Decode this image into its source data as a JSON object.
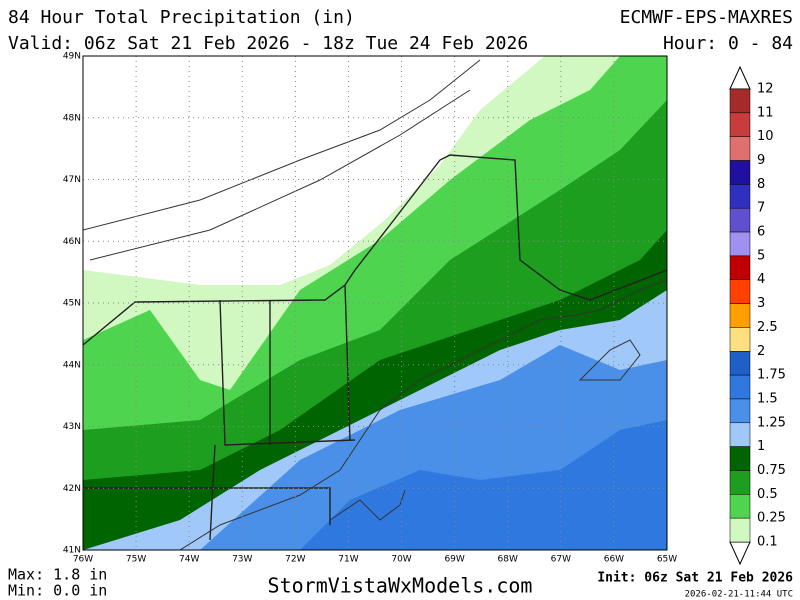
{
  "header": {
    "title": "84 Hour Total Precipitation (in)",
    "model": "ECMWF-EPS-MAXRES",
    "valid": "Valid: 06z Sat 21 Feb 2026 - 18z Tue 24 Feb 2026",
    "hours": "Hour: 0 - 84"
  },
  "map": {
    "lat_labels": [
      "49N",
      "48N",
      "47N",
      "46N",
      "45N",
      "44N",
      "43N",
      "42N",
      "41N"
    ],
    "lon_labels": [
      "76W",
      "75W",
      "74W",
      "73W",
      "72W",
      "71W",
      "70W",
      "69W",
      "68W",
      "67W",
      "66W",
      "65W"
    ]
  },
  "legend": {
    "labels": [
      "12",
      "11",
      "10",
      "9",
      "8",
      "7",
      "6",
      "5",
      "4",
      "3",
      "2.5",
      "2",
      "1.75",
      "1.5",
      "1.25",
      "1",
      "0.75",
      "0.5",
      "0.25",
      "0.1"
    ],
    "colors": [
      "#a52a2a",
      "#c83c3c",
      "#e07070",
      "#2010a0",
      "#3030c0",
      "#6050d0",
      "#a090f0",
      "#c00000",
      "#ff4000",
      "#ffa000",
      "#ffe080",
      "#1f5fc8",
      "#2f78e0",
      "#4a90e8",
      "#a0c8f8",
      "#006400",
      "#1e9e1e",
      "#4fd44f",
      "#d0f8c0"
    ]
  },
  "footer": {
    "max": "Max: 1.8 in",
    "min": "Min: 0.0 in",
    "site": "StormVistaWxModels.com",
    "init": "Init: 06z Sat 21 Feb 2026",
    "timestamp": "2026-02-21-11:44 UTC"
  }
}
